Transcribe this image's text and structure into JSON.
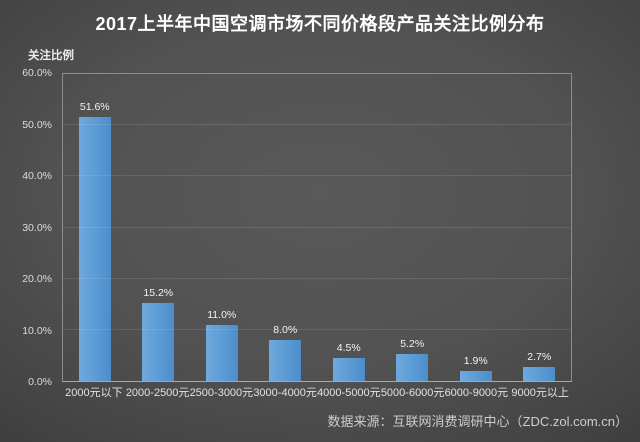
{
  "title": "2017上半年中国空调市场不同价格段产品关注比例分布",
  "source": "数据来源：互联网消费调研中心（ZDC.zol.com.cn）",
  "chart_data": {
    "type": "bar",
    "title": "2017上半年中国空调市场不同价格段产品关注比例分布",
    "ylabel": "关注比例",
    "xlabel": "",
    "categories": [
      "2000元以下",
      "2000-2500元",
      "2500-3000元",
      "3000-4000元",
      "4000-5000元",
      "5000-6000元",
      "6000-9000元",
      "9000元以上"
    ],
    "values": [
      51.6,
      15.2,
      11.0,
      8.0,
      4.5,
      5.2,
      1.9,
      2.7
    ],
    "value_labels": [
      "51.6%",
      "15.2%",
      "11.0%",
      "8.0%",
      "4.5%",
      "5.2%",
      "1.9%",
      "2.7%"
    ],
    "ylim": [
      0,
      60
    ],
    "ytick_step": 10,
    "ytick_labels": [
      "0.0%",
      "10.0%",
      "20.0%",
      "30.0%",
      "40.0%",
      "50.0%",
      "60.0%"
    ],
    "grid": true,
    "legend": "none",
    "bar_color": "#5b9bd5",
    "background_color": "#4a4a4a",
    "text_color": "#ffffff"
  }
}
